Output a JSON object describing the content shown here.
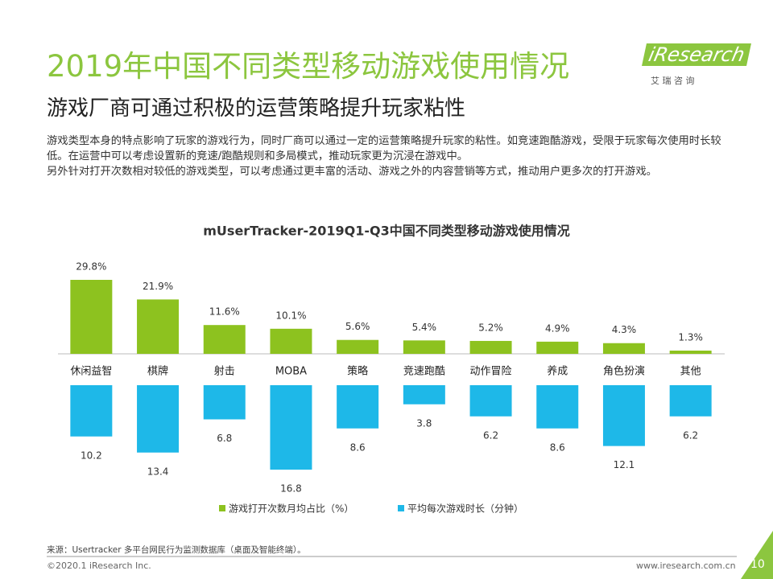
{
  "header": {
    "title": "2019年中国不同类型移动游戏使用情况",
    "subtitle": "游戏厂商可通过积极的运营策略提升玩家粘性",
    "logo": "iResearch",
    "logo_sub": "艾 瑞 咨 询"
  },
  "body": [
    "游戏类型本身的特点影响了玩家的游戏行为，同时厂商可以通过一定的运营策略提升玩家的粘性。如竞速跑酷游戏，受限于玩家每次使用时长较低。在运营中可以考虑设置新的竞速/跑酷规则和多局模式，推动玩家更为沉浸在游戏中。",
    "另外针对打开次数相对较低的游戏类型，可以考虑通过更丰富的活动、游戏之外的内容营销等方式，推动用户更多次的打开游戏。"
  ],
  "chart_data": {
    "type": "bar",
    "title": "mUserTracker-2019Q1-Q3中国不同类型移动游戏使用情况",
    "categories": [
      "休闲益智",
      "棋牌",
      "射击",
      "MOBA",
      "策略",
      "竞速跑酷",
      "动作冒险",
      "养成",
      "角色扮演",
      "其他"
    ],
    "series": [
      {
        "name": "游戏打开次数月均占比（%）",
        "color": "#8dc21f",
        "values": [
          29.8,
          21.9,
          11.6,
          10.1,
          5.6,
          5.4,
          5.2,
          4.9,
          4.3,
          1.3
        ],
        "value_labels": [
          "29.8%",
          "21.9%",
          "11.6%",
          "10.1%",
          "5.6%",
          "5.4%",
          "5.2%",
          "4.9%",
          "4.3%",
          "1.3%"
        ]
      },
      {
        "name": "平均每次游戏时长（分钟）",
        "color": "#1eb8e8",
        "values": [
          10.2,
          13.4,
          6.8,
          16.8,
          8.6,
          3.8,
          6.2,
          8.6,
          12.1,
          6.2
        ]
      }
    ]
  },
  "footer": {
    "source": "来源：Usertracker 多平台网民行为监测数据库（桌面及智能终端）。",
    "copyright": "©2020.1 iResearch Inc.",
    "website": "www.iresearch.com.cn",
    "page": "10"
  }
}
